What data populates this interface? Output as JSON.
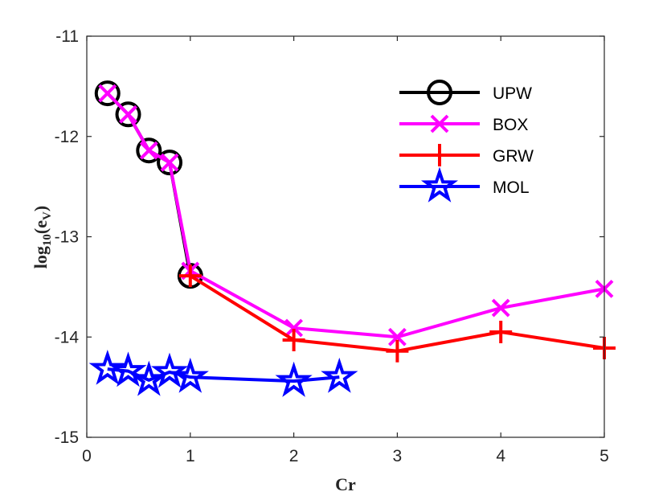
{
  "chart_data": {
    "type": "line",
    "title": "",
    "xlabel": "Cr",
    "ylabel": "log10(eV)",
    "ylabel_parts": {
      "fn": "log",
      "sub": "10",
      "arg": "(e",
      "argsub": "V",
      "close": ")"
    },
    "xlim": [
      0,
      5
    ],
    "ylim": [
      -15,
      -11
    ],
    "xticks": [
      0,
      1,
      2,
      3,
      4,
      5
    ],
    "xtick_labels": [
      "0",
      "1",
      "2",
      "3",
      "4",
      "5"
    ],
    "yticks": [
      -15,
      -14,
      -13,
      -12,
      -11
    ],
    "ytick_labels": [
      "-15",
      "-14",
      "-13",
      "-12",
      "-11"
    ],
    "grid": false,
    "legend_position": "top-right",
    "series": [
      {
        "name": "UPW",
        "color": "#000000",
        "marker": "circle",
        "x": [
          0.2,
          0.4,
          0.6,
          0.8,
          1.0
        ],
        "y": [
          -11.57,
          -11.78,
          -12.14,
          -12.26,
          -13.39
        ]
      },
      {
        "name": "BOX",
        "color": "#ff00ff",
        "marker": "x",
        "x": [
          0.2,
          0.4,
          0.6,
          0.8,
          1.0,
          2,
          3,
          4,
          5
        ],
        "y": [
          -11.57,
          -11.78,
          -12.14,
          -12.26,
          -13.34,
          -13.91,
          -14.0,
          -13.71,
          -13.52
        ]
      },
      {
        "name": "GRW",
        "color": "#ff0000",
        "marker": "plus",
        "x": [
          1.0,
          2,
          3,
          4,
          5
        ],
        "y": [
          -13.39,
          -14.03,
          -14.14,
          -13.95,
          -14.11
        ]
      },
      {
        "name": "MOL",
        "color": "#0000ff",
        "marker": "star",
        "x": [
          0.2,
          0.4,
          0.6,
          0.8,
          1.0,
          2.0,
          2.44
        ],
        "y": [
          -14.32,
          -14.34,
          -14.43,
          -14.35,
          -14.4,
          -14.44,
          -14.4
        ]
      }
    ]
  }
}
